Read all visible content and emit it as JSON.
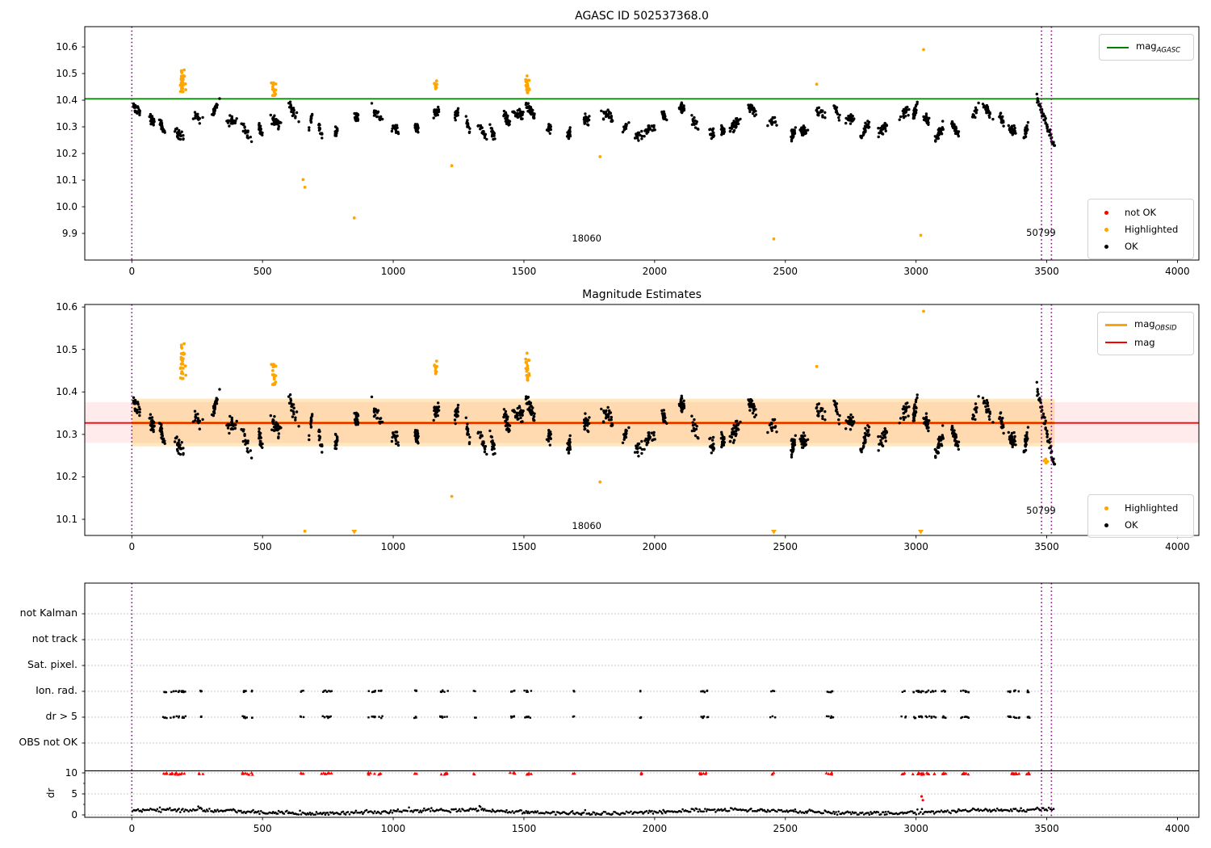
{
  "colors": {
    "green": "#008000",
    "orange": "#ffa500",
    "red": "#ff0000",
    "black": "#000000",
    "purple": "#800080",
    "band_pink": "rgba(255,0,0,0.08)",
    "band_orange": "rgba(255,165,0,0.25)",
    "grid": "#bbbbbb",
    "frame": "#000000"
  },
  "chart_data": [
    {
      "type": "scatter",
      "title": "AGASC ID 502537368.0",
      "xlim": [
        -180,
        4082
      ],
      "ylim": [
        9.8,
        10.676
      ],
      "xticks": [
        0,
        500,
        1000,
        1500,
        2000,
        2500,
        3000,
        3500,
        4000
      ],
      "yticks": [
        9.9,
        10.0,
        10.1,
        10.2,
        10.3,
        10.4,
        10.5,
        10.6
      ],
      "hline": {
        "y": 10.405,
        "color": "green"
      },
      "vlines": {
        "x": [
          0,
          3480,
          3518
        ],
        "color": "purple",
        "style": "dotted"
      },
      "legend_line": {
        "items": [
          {
            "label_main": "mag",
            "label_sub": "AGASC",
            "color": "green"
          }
        ]
      },
      "legend_markers": {
        "items": [
          {
            "label": "not OK",
            "color": "red"
          },
          {
            "label": "Highlighted",
            "color": "orange"
          },
          {
            "label": "OK",
            "color": "black"
          }
        ]
      },
      "annotations": [
        {
          "text": "18060",
          "x": 1740,
          "y": 9.878
        },
        {
          "text": "50799",
          "x": 3478,
          "y": 9.901
        }
      ],
      "series": {
        "ok_spec": {
          "seed": 20,
          "x_min": 0,
          "x_max": 3530,
          "base": 10.318,
          "wave_amp": 0.042,
          "wave_period": 295,
          "phase": 1.1,
          "noise": 0.018,
          "width_min": 8,
          "width_max": 26,
          "n_min": 14,
          "n_max": 34,
          "gap_min": 38,
          "gap_var": 44,
          "y_clip": [
            10.22,
            10.45
          ]
        },
        "ok_tail": {
          "x0": 3462,
          "x1": 3530,
          "n": 46,
          "y_start": 10.408,
          "y_end": 10.224,
          "noise": 0.012
        },
        "highlighted_clusters": [
          {
            "x": 196,
            "w": 14,
            "n": 26,
            "y_lo": 10.43,
            "y_hi": 10.525
          },
          {
            "x": 545,
            "w": 11,
            "n": 16,
            "y_lo": 10.415,
            "y_hi": 10.475
          },
          {
            "x": 1163,
            "w": 8,
            "n": 10,
            "y_lo": 10.44,
            "y_hi": 10.475
          },
          {
            "x": 1513,
            "w": 10,
            "n": 20,
            "y_lo": 10.425,
            "y_hi": 10.495
          }
        ],
        "highlighted_points": [
          [
            655,
            10.102
          ],
          [
            662,
            10.073
          ],
          [
            851,
            9.958
          ],
          [
            1224,
            10.154
          ],
          [
            1791,
            10.188
          ],
          [
            2456,
            9.879
          ],
          [
            2620,
            10.46
          ],
          [
            3018,
            9.893
          ],
          [
            3029,
            10.59
          ]
        ]
      }
    },
    {
      "type": "scatter",
      "title": "Magnitude Estimates",
      "xlim": [
        -180,
        4082
      ],
      "ylim": [
        10.062,
        10.606
      ],
      "xticks": [
        0,
        500,
        1000,
        1500,
        2000,
        2500,
        3000,
        3500,
        4000
      ],
      "yticks": [
        10.1,
        10.2,
        10.3,
        10.4,
        10.5,
        10.6
      ],
      "mag_line": {
        "y": 10.327,
        "color": "red"
      },
      "mag_obsid_line": {
        "y": 10.327,
        "x0": 0,
        "x1": 3530,
        "color": "orange"
      },
      "band_mag": {
        "lo": 10.28,
        "hi": 10.376,
        "color": "band_pink"
      },
      "band_obsid": {
        "lo": 10.272,
        "hi": 10.384,
        "x0": 0,
        "x1": 3530,
        "color": "band_orange"
      },
      "vlines": {
        "x": [
          0,
          3480,
          3518
        ],
        "color": "purple",
        "style": "dotted"
      },
      "legend_line": {
        "items": [
          {
            "label_main": "mag",
            "label_sub": "OBSID",
            "color": "orange",
            "lw": 3
          },
          {
            "label_main": "mag",
            "label_sub": "",
            "color": "red",
            "lw": 2
          }
        ]
      },
      "legend_markers": {
        "items": [
          {
            "label": "Highlighted",
            "color": "orange"
          },
          {
            "label": "OK",
            "color": "black"
          }
        ]
      },
      "annotations": [
        {
          "text": "18060",
          "x": 1740,
          "y": 10.083
        },
        {
          "text": "50799",
          "x": 3478,
          "y": 10.119
        }
      ],
      "series": {
        "reuse_ok_points_from_plot": 0,
        "highlighted_points": [
          [
            662,
            10.072
          ],
          [
            1224,
            10.154
          ],
          [
            1791,
            10.188
          ],
          [
            2620,
            10.46
          ],
          [
            3029,
            10.59
          ],
          [
            3490,
            10.238
          ],
          [
            3497,
            10.233
          ],
          [
            3503,
            10.236
          ],
          [
            3496,
            10.242
          ]
        ],
        "clipped_low_x": [
          851,
          2456,
          3018
        ]
      }
    },
    {
      "type": "flags",
      "rows": [
        "not Kalman",
        "not track",
        "Sat. pixel.",
        "Ion. rad.",
        "dr > 5",
        "OBS not OK"
      ],
      "rows_with_points": [
        "Ion. rad.",
        "dr > 5"
      ],
      "ylabel": "dr",
      "dr_ticks": [
        0,
        5,
        10
      ],
      "dr_limit_line": 10.5,
      "xticks": [
        0,
        500,
        1000,
        1500,
        2000,
        2500,
        3000,
        3500,
        4000
      ],
      "xlim": [
        -180,
        4082
      ],
      "vlines": {
        "x": [
          0,
          3480,
          3518
        ],
        "color": "purple",
        "style": "dotted"
      },
      "flag_clusters": [
        [
          163,
          45,
          16
        ],
        [
          265,
          8,
          3
        ],
        [
          437,
          14,
          6
        ],
        [
          460,
          5,
          2
        ],
        [
          652,
          6,
          3
        ],
        [
          745,
          20,
          8
        ],
        [
          918,
          14,
          6
        ],
        [
          950,
          6,
          3
        ],
        [
          1085,
          6,
          3
        ],
        [
          1196,
          16,
          7
        ],
        [
          1312,
          5,
          2
        ],
        [
          1456,
          12,
          5
        ],
        [
          1516,
          14,
          6
        ],
        [
          1691,
          5,
          2
        ],
        [
          1951,
          6,
          3
        ],
        [
          2186,
          16,
          7
        ],
        [
          2452,
          6,
          3
        ],
        [
          2671,
          14,
          6
        ],
        [
          2952,
          6,
          3
        ],
        [
          3030,
          45,
          16
        ],
        [
          3106,
          9,
          4
        ],
        [
          3186,
          15,
          7
        ],
        [
          3372,
          22,
          9
        ],
        [
          3432,
          9,
          4
        ]
      ],
      "dr_red_points": [
        [
          3021,
          4.4
        ],
        [
          3026,
          3.5
        ]
      ],
      "dr_trace_spec": {
        "seed": 9,
        "x_min": 2,
        "x_max": 3528,
        "base": 0.75,
        "wave_amp": 0.4,
        "wave_period": 170,
        "noise": 0.45,
        "y_clip": [
          0.05,
          3.0
        ]
      }
    }
  ]
}
